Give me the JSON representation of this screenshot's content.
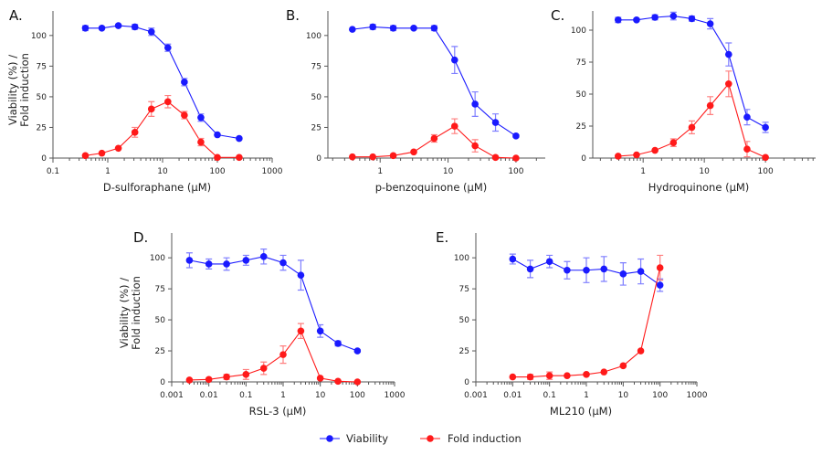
{
  "chart_data": [
    {
      "panel_label": "A.",
      "type": "line",
      "xscale": "log",
      "xlabel": "D-sulforaphane (μM)",
      "ylabel": [
        "Viability (%) /",
        "Fold induction"
      ],
      "xlim": [
        0.1,
        1000
      ],
      "ylim": [
        0,
        120
      ],
      "xticks": [
        0.1,
        1,
        10,
        100,
        1000
      ],
      "xtick_labels": [
        "0.1",
        "1",
        "10",
        "100",
        "1000"
      ],
      "yticks": [
        0,
        25,
        50,
        75,
        100
      ],
      "x": [
        0.39,
        0.78,
        1.56,
        3.125,
        6.25,
        12.5,
        25,
        50,
        100,
        250
      ],
      "series": [
        {
          "name": "Viability",
          "values": [
            106,
            106,
            108,
            107,
            103,
            90,
            62,
            33,
            19,
            16
          ],
          "errors": [
            2,
            1,
            1,
            2,
            3,
            3,
            3,
            3,
            1,
            1
          ]
        },
        {
          "name": "Fold induction",
          "values": [
            2,
            4,
            8,
            21,
            40,
            46,
            35,
            13,
            0.5,
            0.5
          ],
          "errors": [
            0,
            0,
            0,
            4,
            6,
            5,
            3,
            3,
            0,
            0
          ]
        }
      ]
    },
    {
      "panel_label": "B.",
      "type": "line",
      "xscale": "log",
      "xlabel": "p-benzoquinone (μM)",
      "ylabel": [],
      "xlim": [
        0.17,
        270
      ],
      "ylim": [
        0,
        120
      ],
      "xticks": [
        1,
        10,
        100
      ],
      "xtick_labels": [
        "1",
        "10",
        "100"
      ],
      "yticks": [
        0,
        25,
        50,
        75,
        100
      ],
      "x": [
        0.39,
        0.78,
        1.56,
        3.125,
        6.25,
        12.5,
        25,
        50,
        100
      ],
      "series": [
        {
          "name": "Viability",
          "values": [
            105,
            107,
            106,
            106,
            106,
            80,
            44,
            29,
            18
          ],
          "errors": [
            0,
            2,
            2,
            1,
            2,
            11,
            10,
            7,
            1
          ]
        },
        {
          "name": "Fold induction",
          "values": [
            1,
            1,
            2,
            5,
            16,
            26,
            10,
            0.5,
            0
          ],
          "errors": [
            0,
            0,
            0,
            1,
            3,
            6,
            5,
            0,
            0
          ]
        }
      ]
    },
    {
      "panel_label": "C.",
      "type": "line",
      "xscale": "log",
      "xlabel": "Hydroquinone  (μM)",
      "ylabel": [],
      "xlim": [
        0.15,
        660
      ],
      "ylim": [
        0,
        115
      ],
      "xticks": [
        1,
        10,
        100
      ],
      "xtick_labels": [
        "1",
        "10",
        "100"
      ],
      "yticks": [
        0,
        25,
        50,
        75,
        100
      ],
      "x": [
        0.39,
        0.78,
        1.56,
        3.125,
        6.25,
        12.5,
        25,
        50,
        100
      ],
      "series": [
        {
          "name": "Viability",
          "values": [
            108,
            108,
            110,
            111,
            109,
            105,
            81,
            32,
            24
          ],
          "errors": [
            2,
            1,
            2,
            3,
            2,
            4,
            9,
            6,
            4
          ]
        },
        {
          "name": "Fold induction",
          "values": [
            1.5,
            2.5,
            6,
            12,
            24,
            41,
            58,
            7,
            0.5
          ],
          "errors": [
            0,
            0,
            0,
            3,
            5,
            7,
            10,
            6,
            0
          ]
        }
      ]
    },
    {
      "panel_label": "D.",
      "type": "line",
      "xscale": "log",
      "xlabel": "RSL-3 (μM)",
      "ylabel": [
        "Viability (%) /",
        "Fold induction"
      ],
      "xlim": [
        0.001,
        1000
      ],
      "ylim": [
        0,
        120
      ],
      "xticks": [
        0.001,
        0.01,
        0.1,
        1,
        10,
        100,
        1000
      ],
      "xtick_labels": [
        "0.001",
        "0.01",
        "0.1",
        "1",
        "10",
        "100",
        "1000"
      ],
      "yticks": [
        0,
        25,
        50,
        75,
        100
      ],
      "x": [
        0.003,
        0.01,
        0.03,
        0.1,
        0.3,
        1,
        3,
        10,
        30,
        100
      ],
      "series": [
        {
          "name": "Viability",
          "values": [
            98,
            95,
            95,
            98,
            101,
            96,
            86,
            41,
            31,
            25
          ],
          "errors": [
            6,
            4,
            5,
            4,
            6,
            6,
            12,
            5,
            2,
            1
          ]
        },
        {
          "name": "Fold induction",
          "values": [
            1.5,
            2,
            4,
            6,
            11,
            22,
            41,
            3,
            0.5,
            0
          ],
          "errors": [
            0,
            1,
            2,
            4,
            5,
            7,
            6,
            0,
            0,
            0
          ]
        }
      ]
    },
    {
      "panel_label": "E.",
      "type": "line",
      "xscale": "log",
      "xlabel": "ML210 (μM)",
      "ylabel": [],
      "xlim": [
        0.001,
        1000
      ],
      "ylim": [
        0,
        120
      ],
      "xticks": [
        0.001,
        0.01,
        0.1,
        1,
        10,
        100,
        1000
      ],
      "xtick_labels": [
        "0.001",
        "0.01",
        "0.1",
        "1",
        "10",
        "100",
        "1000"
      ],
      "yticks": [
        0,
        25,
        50,
        75,
        100
      ],
      "x": [
        0.01,
        0.03,
        0.1,
        0.3,
        1,
        3,
        10,
        30,
        100
      ],
      "series": [
        {
          "name": "Viability",
          "values": [
            99,
            91,
            97,
            90,
            90,
            91,
            87,
            89,
            78
          ],
          "errors": [
            4,
            7,
            5,
            7,
            10,
            10,
            9,
            10,
            5
          ]
        },
        {
          "name": "Fold induction",
          "values": [
            4,
            4,
            5,
            5,
            6,
            8,
            13,
            25,
            92
          ],
          "errors": [
            0,
            2,
            3,
            0,
            0,
            0,
            0,
            0,
            10
          ]
        }
      ]
    }
  ],
  "legend": {
    "placement": "bottom",
    "items": [
      {
        "label": "Viability",
        "color": "#1a1aff"
      },
      {
        "label": "Fold induction",
        "color": "#ff1a1a"
      }
    ]
  },
  "colors": {
    "viability": "#1a1aff",
    "fold_induction": "#ff1a1a",
    "axis": "#555555"
  }
}
